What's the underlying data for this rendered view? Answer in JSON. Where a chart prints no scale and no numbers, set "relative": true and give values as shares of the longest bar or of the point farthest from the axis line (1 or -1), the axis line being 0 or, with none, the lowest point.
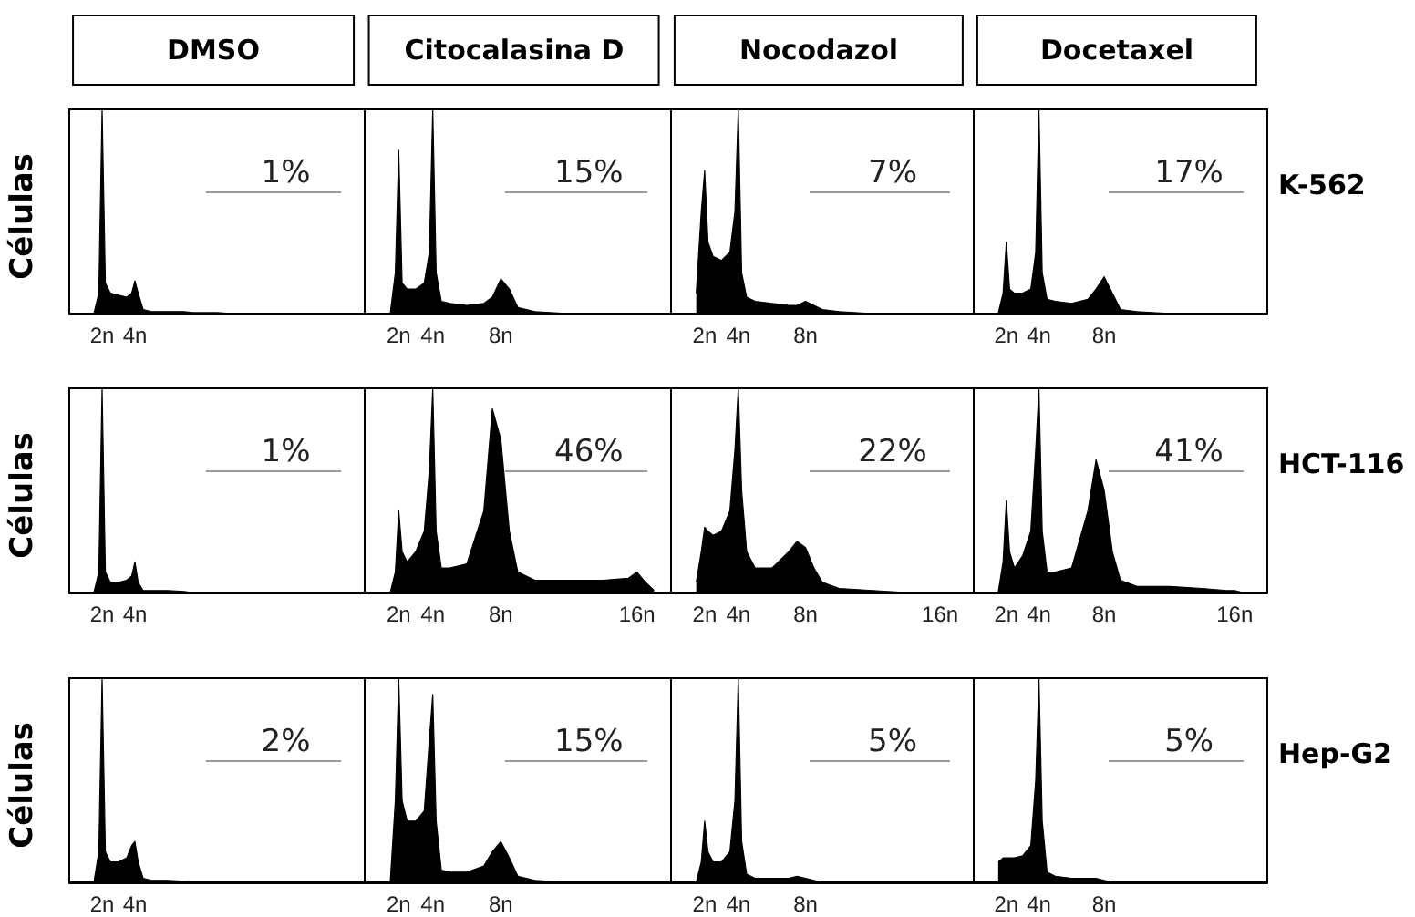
{
  "chart_data": [
    {
      "type": "area",
      "relative": true,
      "title": "DMSO",
      "ylabel": "Células",
      "color": "#000000",
      "annotations": [
        "1%"
      ],
      "xlim": [
        0,
        18
      ],
      "xticks": [
        {
          "value": 2,
          "label": "2n"
        },
        {
          "value": 4,
          "label": "4n"
        }
      ],
      "x": [
        1.5,
        1.8,
        2,
        2.2,
        2.5,
        3,
        3.5,
        3.8,
        4,
        4.2,
        4.5,
        5,
        6,
        7,
        7.5,
        8,
        8.5,
        9,
        10,
        12,
        14,
        15.5,
        16,
        16.5,
        17
      ],
      "values": [
        0,
        0.1,
        1,
        0.15,
        0.1,
        0.09,
        0.08,
        0.1,
        0.16,
        0.1,
        0.02,
        0.01,
        0.01,
        0.01,
        0.005,
        0.005,
        0.005,
        0.005,
        0,
        0,
        0,
        0,
        0,
        0,
        0
      ]
    },
    {
      "type": "area",
      "relative": true,
      "title": "Citocalasina D",
      "color": "#000000",
      "annotations": [
        "15%"
      ],
      "xlim": [
        0,
        18
      ],
      "xticks": [
        {
          "value": 2,
          "label": "2n"
        },
        {
          "value": 4,
          "label": "4n"
        },
        {
          "value": 8,
          "label": "8n"
        }
      ],
      "x": [
        1.5,
        1.8,
        2,
        2.2,
        2.5,
        3,
        3.5,
        3.8,
        4,
        4.2,
        4.5,
        5,
        6,
        7,
        7.5,
        8,
        8.5,
        9,
        10,
        12,
        14,
        15.5,
        16,
        16.5,
        17
      ],
      "values": [
        0,
        0.2,
        0.8,
        0.15,
        0.12,
        0.12,
        0.15,
        0.3,
        1,
        0.2,
        0.06,
        0.05,
        0.04,
        0.05,
        0.08,
        0.17,
        0.12,
        0.03,
        0.01,
        0,
        0,
        0,
        0,
        0,
        0
      ]
    },
    {
      "type": "area",
      "relative": true,
      "title": "Nocodazol",
      "color": "#000000",
      "annotations": [
        "7%"
      ],
      "xlim": [
        0,
        18
      ],
      "xticks": [
        {
          "value": 2,
          "label": "2n"
        },
        {
          "value": 4,
          "label": "4n"
        },
        {
          "value": 8,
          "label": "8n"
        }
      ],
      "x": [
        1.5,
        1.8,
        2,
        2.2,
        2.5,
        3,
        3.5,
        3.8,
        4,
        4.2,
        4.5,
        5,
        6,
        7,
        7.5,
        8,
        8.5,
        9,
        10,
        12,
        14,
        15.5,
        16,
        16.5,
        17
      ],
      "values": [
        0.1,
        0.5,
        0.7,
        0.35,
        0.28,
        0.26,
        0.3,
        0.5,
        1,
        0.2,
        0.08,
        0.06,
        0.05,
        0.04,
        0.04,
        0.06,
        0.04,
        0.02,
        0.01,
        0,
        0,
        0,
        0,
        0,
        0
      ]
    },
    {
      "type": "area",
      "relative": true,
      "title": "Docetaxel",
      "y2label": "K-562",
      "color": "#000000",
      "annotations": [
        "17%"
      ],
      "xlim": [
        0,
        18
      ],
      "xticks": [
        {
          "value": 2,
          "label": "2n"
        },
        {
          "value": 4,
          "label": "4n"
        },
        {
          "value": 8,
          "label": "8n"
        }
      ],
      "x": [
        1.5,
        1.8,
        2,
        2.2,
        2.5,
        3,
        3.5,
        3.8,
        4,
        4.2,
        4.5,
        5,
        6,
        7,
        7.5,
        8,
        8.5,
        9,
        10,
        12,
        14,
        15.5,
        16,
        16.5,
        17
      ],
      "values": [
        0,
        0.1,
        0.35,
        0.12,
        0.1,
        0.1,
        0.12,
        0.3,
        1,
        0.2,
        0.07,
        0.06,
        0.05,
        0.07,
        0.12,
        0.18,
        0.1,
        0.02,
        0.01,
        0,
        0,
        0,
        0,
        0,
        0
      ]
    },
    {
      "type": "area",
      "relative": true,
      "ylabel": "Células",
      "color": "#000000",
      "annotations": [
        "1%"
      ],
      "xlim": [
        0,
        18
      ],
      "xticks": [
        {
          "value": 2,
          "label": "2n"
        },
        {
          "value": 4,
          "label": "4n"
        }
      ],
      "x": [
        1.5,
        1.8,
        2,
        2.2,
        2.5,
        3,
        3.5,
        3.8,
        4,
        4.2,
        4.5,
        5,
        6,
        7,
        7.5,
        8,
        8.5,
        9,
        10,
        12,
        14,
        15.5,
        16,
        16.5,
        17
      ],
      "values": [
        0,
        0.1,
        1,
        0.1,
        0.05,
        0.05,
        0.06,
        0.08,
        0.15,
        0.05,
        0.01,
        0.01,
        0.01,
        0.005,
        0,
        0,
        0,
        0,
        0,
        0,
        0,
        0,
        0,
        0,
        0
      ]
    },
    {
      "type": "area",
      "relative": true,
      "color": "#000000",
      "annotations": [
        "46%"
      ],
      "xlim": [
        0,
        18
      ],
      "xticks": [
        {
          "value": 2,
          "label": "2n"
        },
        {
          "value": 4,
          "label": "4n"
        },
        {
          "value": 8,
          "label": "8n"
        },
        {
          "value": 16,
          "label": "16n"
        }
      ],
      "x": [
        1.5,
        1.8,
        2,
        2.2,
        2.5,
        3,
        3.5,
        3.8,
        4,
        4.2,
        4.5,
        5,
        6,
        7,
        7.5,
        8,
        8.5,
        9,
        10,
        12,
        14,
        15.5,
        16,
        16.5,
        17
      ],
      "values": [
        0,
        0.1,
        0.4,
        0.2,
        0.15,
        0.2,
        0.3,
        0.6,
        1,
        0.3,
        0.12,
        0.12,
        0.14,
        0.4,
        0.9,
        0.75,
        0.3,
        0.1,
        0.06,
        0.06,
        0.06,
        0.07,
        0.1,
        0.05,
        0.01
      ]
    },
    {
      "type": "area",
      "relative": true,
      "color": "#000000",
      "annotations": [
        "22%"
      ],
      "xlim": [
        0,
        18
      ],
      "xticks": [
        {
          "value": 2,
          "label": "2n"
        },
        {
          "value": 4,
          "label": "4n"
        },
        {
          "value": 8,
          "label": "8n"
        },
        {
          "value": 16,
          "label": "16n"
        }
      ],
      "x": [
        1.5,
        1.8,
        2,
        2.2,
        2.5,
        3,
        3.5,
        3.8,
        4,
        4.2,
        4.5,
        5,
        6,
        7,
        7.5,
        8,
        8.5,
        9,
        10,
        12,
        14,
        15.5,
        16,
        16.5,
        17
      ],
      "values": [
        0.05,
        0.2,
        0.32,
        0.3,
        0.28,
        0.3,
        0.4,
        0.7,
        1,
        0.5,
        0.2,
        0.12,
        0.12,
        0.2,
        0.25,
        0.22,
        0.12,
        0.05,
        0.02,
        0.01,
        0,
        0,
        0,
        0,
        0
      ]
    },
    {
      "type": "area",
      "relative": true,
      "y2label": "HCT-116",
      "color": "#000000",
      "annotations": [
        "41%"
      ],
      "xlim": [
        0,
        18
      ],
      "xticks": [
        {
          "value": 2,
          "label": "2n"
        },
        {
          "value": 4,
          "label": "4n"
        },
        {
          "value": 8,
          "label": "8n"
        },
        {
          "value": 16,
          "label": "16n"
        }
      ],
      "x": [
        1.5,
        1.8,
        2,
        2.2,
        2.5,
        3,
        3.5,
        3.8,
        4,
        4.2,
        4.5,
        5,
        6,
        7,
        7.5,
        8,
        8.5,
        9,
        10,
        12,
        14,
        15.5,
        16,
        16.5,
        17
      ],
      "values": [
        0,
        0.15,
        0.45,
        0.2,
        0.12,
        0.18,
        0.3,
        0.7,
        1,
        0.3,
        0.1,
        0.1,
        0.12,
        0.4,
        0.65,
        0.5,
        0.2,
        0.06,
        0.03,
        0.03,
        0.02,
        0.01,
        0.01,
        0,
        0
      ]
    },
    {
      "type": "area",
      "relative": true,
      "ylabel": "Células",
      "color": "#000000",
      "annotations": [
        "2%"
      ],
      "xlim": [
        0,
        18
      ],
      "xticks": [
        {
          "value": 2,
          "label": "2n"
        },
        {
          "value": 4,
          "label": "4n"
        }
      ],
      "x": [
        1.5,
        1.8,
        2,
        2.2,
        2.5,
        3,
        3.5,
        3.8,
        4,
        4.2,
        4.5,
        5,
        6,
        7,
        7.5,
        8,
        8.5,
        9,
        10,
        12,
        14,
        15.5,
        16,
        16.5,
        17
      ],
      "values": [
        0,
        0.15,
        1,
        0.15,
        0.1,
        0.1,
        0.12,
        0.18,
        0.2,
        0.1,
        0.02,
        0.01,
        0.01,
        0.005,
        0,
        0,
        0,
        0,
        0,
        0,
        0,
        0,
        0,
        0,
        0
      ]
    },
    {
      "type": "area",
      "relative": true,
      "color": "#000000",
      "annotations": [
        "15%"
      ],
      "xlim": [
        0,
        18
      ],
      "xticks": [
        {
          "value": 2,
          "label": "2n"
        },
        {
          "value": 4,
          "label": "4n"
        },
        {
          "value": 8,
          "label": "8n"
        }
      ],
      "x": [
        1.5,
        1.8,
        2,
        2.2,
        2.5,
        3,
        3.5,
        3.8,
        4,
        4.2,
        4.5,
        5,
        6,
        7,
        7.5,
        8,
        8.5,
        9,
        10,
        12,
        14,
        15.5,
        16,
        16.5,
        17
      ],
      "values": [
        0,
        0.4,
        1,
        0.4,
        0.3,
        0.3,
        0.35,
        0.7,
        0.92,
        0.3,
        0.06,
        0.05,
        0.05,
        0.08,
        0.15,
        0.2,
        0.12,
        0.03,
        0.01,
        0,
        0,
        0,
        0,
        0,
        0
      ]
    },
    {
      "type": "area",
      "relative": true,
      "color": "#000000",
      "annotations": [
        "5%"
      ],
      "xlim": [
        0,
        18
      ],
      "xticks": [
        {
          "value": 2,
          "label": "2n"
        },
        {
          "value": 4,
          "label": "4n"
        },
        {
          "value": 8,
          "label": "8n"
        }
      ],
      "x": [
        1.5,
        1.8,
        2,
        2.2,
        2.5,
        3,
        3.5,
        3.8,
        4,
        4.2,
        4.5,
        5,
        6,
        7,
        7.5,
        8,
        8.5,
        9,
        10,
        12,
        14,
        15.5,
        16,
        16.5,
        17
      ],
      "values": [
        0,
        0.1,
        0.3,
        0.15,
        0.1,
        0.1,
        0.15,
        0.4,
        1,
        0.2,
        0.04,
        0.02,
        0.02,
        0.02,
        0.03,
        0.02,
        0.01,
        0,
        0,
        0,
        0,
        0,
        0,
        0,
        0
      ]
    },
    {
      "type": "area",
      "relative": true,
      "y2label": "Hep-G2",
      "color": "#000000",
      "annotations": [
        "5%"
      ],
      "xlim": [
        0,
        18
      ],
      "xticks": [
        {
          "value": 2,
          "label": "2n"
        },
        {
          "value": 4,
          "label": "4n"
        },
        {
          "value": 8,
          "label": "8n"
        }
      ],
      "x": [
        1.5,
        1.8,
        2,
        2.2,
        2.5,
        3,
        3.5,
        3.8,
        4,
        4.2,
        4.5,
        5,
        6,
        7,
        7.5,
        8,
        8.5,
        9,
        10,
        12,
        14,
        15.5,
        16,
        16.5,
        17
      ],
      "values": [
        0.1,
        0.12,
        0.12,
        0.12,
        0.12,
        0.13,
        0.18,
        0.5,
        1,
        0.3,
        0.05,
        0.03,
        0.02,
        0.02,
        0.02,
        0.01,
        0,
        0,
        0,
        0,
        0,
        0,
        0,
        0,
        0
      ]
    }
  ]
}
